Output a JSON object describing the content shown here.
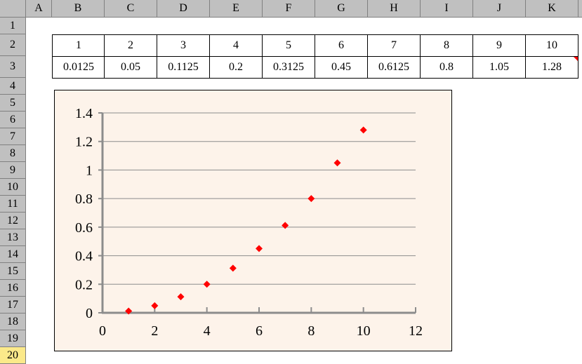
{
  "sheet": {
    "columns": [
      "A",
      "B",
      "C",
      "D",
      "E",
      "F",
      "G",
      "H",
      "I",
      "J",
      "K"
    ],
    "rows": [
      "1",
      "2",
      "3",
      "4",
      "5",
      "6",
      "7",
      "8",
      "9",
      "10",
      "11",
      "12",
      "13",
      "14",
      "15",
      "16",
      "17",
      "18",
      "19",
      "20"
    ],
    "row2": [
      "1",
      "2",
      "3",
      "4",
      "5",
      "6",
      "7",
      "8",
      "9",
      "10"
    ],
    "row3": [
      "0.0125",
      "0.05",
      "0.1125",
      "0.2",
      "0.3125",
      "0.45",
      "0.6125",
      "0.8",
      "1.05",
      "1.28"
    ]
  },
  "chart_data": {
    "type": "scatter",
    "title": "",
    "xlabel": "",
    "ylabel": "",
    "x": [
      1,
      2,
      3,
      4,
      5,
      6,
      7,
      8,
      9,
      10
    ],
    "y": [
      0.0125,
      0.05,
      0.1125,
      0.2,
      0.3125,
      0.45,
      0.6125,
      0.8,
      1.05,
      1.28
    ],
    "xlim": [
      0,
      12
    ],
    "ylim": [
      0,
      1.4
    ],
    "xticks": [
      "0",
      "2",
      "4",
      "6",
      "8",
      "10",
      "12"
    ],
    "yticks": [
      "0",
      "0.2",
      "0.4",
      "0.6",
      "0.8",
      "1",
      "1.2",
      "1.4"
    ],
    "grid": "horizontal",
    "legend": "none",
    "marker_color": "#ff0000",
    "marker": "diamond"
  }
}
